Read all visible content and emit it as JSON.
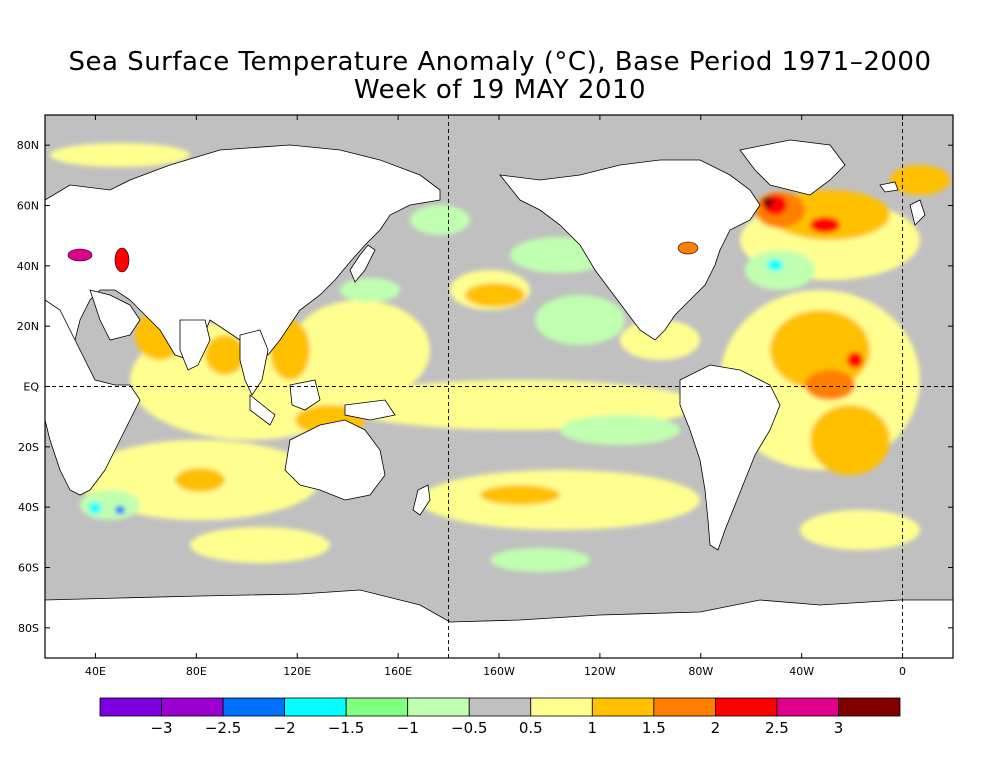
{
  "title": {
    "line1": "Sea Surface Temperature Anomaly (°C), Base Period 1971–2000",
    "line2": "Week of 19 MAY 2010"
  },
  "map": {
    "projection": "equirectangular",
    "lon_range": [
      20,
      380
    ],
    "lat_range": [
      -90,
      90
    ],
    "land_color": "#ffffff",
    "neutral_ocean_color": "#c0c0c0",
    "lat_ticks": [
      {
        "lat": 80,
        "label": "80N"
      },
      {
        "lat": 60,
        "label": "60N"
      },
      {
        "lat": 40,
        "label": "40N"
      },
      {
        "lat": 20,
        "label": "20N"
      },
      {
        "lat": 0,
        "label": "EQ"
      },
      {
        "lat": -20,
        "label": "20S"
      },
      {
        "lat": -40,
        "label": "40S"
      },
      {
        "lat": -60,
        "label": "60S"
      },
      {
        "lat": -80,
        "label": "80S"
      }
    ],
    "lon_ticks": [
      {
        "lon": 40,
        "label": "40E"
      },
      {
        "lon": 80,
        "label": "80E"
      },
      {
        "lon": 120,
        "label": "120E"
      },
      {
        "lon": 160,
        "label": "160E"
      },
      {
        "lon": 200,
        "label": "160W"
      },
      {
        "lon": 240,
        "label": "120W"
      },
      {
        "lon": 280,
        "label": "80W"
      },
      {
        "lon": 320,
        "label": "40W"
      },
      {
        "lon": 360,
        "label": "0"
      }
    ],
    "dashed_lines": {
      "lat": [
        0
      ],
      "lon": [
        180,
        360
      ]
    }
  },
  "colorbar": {
    "colors": [
      "#7a00e0",
      "#9a00d0",
      "#0070ff",
      "#00ffff",
      "#80ff80",
      "#c0ffb0",
      "#c0c0c0",
      "#ffff90",
      "#ffc000",
      "#ff8000",
      "#ff0000",
      "#e0008a",
      "#800000"
    ],
    "labels": [
      "−3",
      "−2.5",
      "−2",
      "−1.5",
      "−1",
      "−0.5",
      "0.5",
      "1",
      "1.5",
      "2",
      "2.5",
      "3"
    ]
  }
}
